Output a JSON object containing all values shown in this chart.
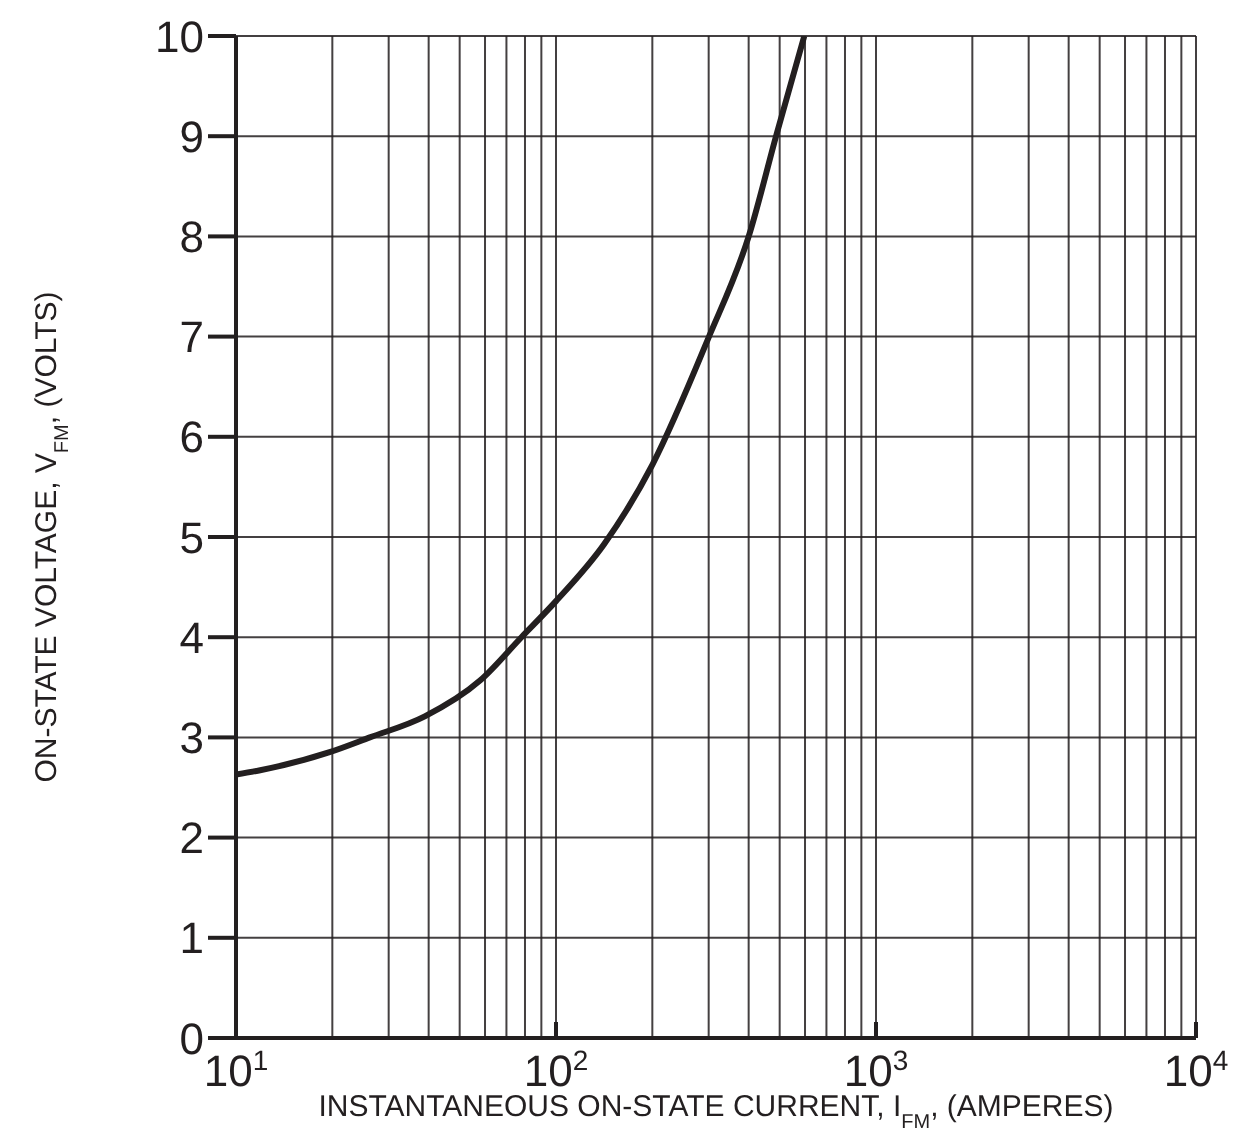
{
  "chart_data": {
    "type": "line",
    "xlabel": "INSTANTANEOUS ON-STATE CURRENT, I$_{FM}$, (AMPERES)",
    "ylabel": "ON-STATE VOLTAGE, V$_{FM}$, (VOLTS)",
    "x": [
      10,
      11.8,
      19.5,
      26.2,
      38.9,
      58,
      78,
      100,
      141.5,
      200,
      298,
      401,
      489,
      597
    ],
    "series": [
      {
        "color": "#231f20",
        "values": [
          2.63,
          2.67,
          2.85,
          3.0,
          3.21,
          3.57,
          4.0,
          4.36,
          4.93,
          5.72,
          6.97,
          8.01,
          9.02,
          10
        ]
      }
    ],
    "log": "x",
    "xlim": [
      10,
      10000
    ],
    "ylim": [
      0,
      10
    ],
    "xticks": [
      {
        "value": 10,
        "label": "10$^{1}$"
      },
      {
        "value": 20,
        "label": null
      },
      {
        "value": 30,
        "label": null
      },
      {
        "value": 40,
        "label": null
      },
      {
        "value": 50,
        "label": null
      },
      {
        "value": 60,
        "label": null
      },
      {
        "value": 70,
        "label": null
      },
      {
        "value": 80,
        "label": null
      },
      {
        "value": 90,
        "label": null
      },
      {
        "value": 100,
        "label": "10$^{2}$"
      },
      {
        "value": 200,
        "label": null
      },
      {
        "value": 300,
        "label": null
      },
      {
        "value": 400,
        "label": null
      },
      {
        "value": 500,
        "label": null
      },
      {
        "value": 600,
        "label": null
      },
      {
        "value": 700,
        "label": null
      },
      {
        "value": 800,
        "label": null
      },
      {
        "value": 900,
        "label": null
      },
      {
        "value": 1000,
        "label": "10$^{3}$"
      },
      {
        "value": 2000,
        "label": null
      },
      {
        "value": 3000,
        "label": null
      },
      {
        "value": 4000,
        "label": null
      },
      {
        "value": 5000,
        "label": null
      },
      {
        "value": 6000,
        "label": null
      },
      {
        "value": 7000,
        "label": null
      },
      {
        "value": 8000,
        "label": null
      },
      {
        "value": 9000,
        "label": null
      },
      {
        "value": 10000,
        "label": "10$^{4}$"
      }
    ],
    "yticks": [
      0,
      1,
      2,
      3,
      4,
      5,
      6,
      7,
      8,
      9,
      10
    ],
    "grid": true,
    "marker": "none",
    "line_style": "solid"
  }
}
